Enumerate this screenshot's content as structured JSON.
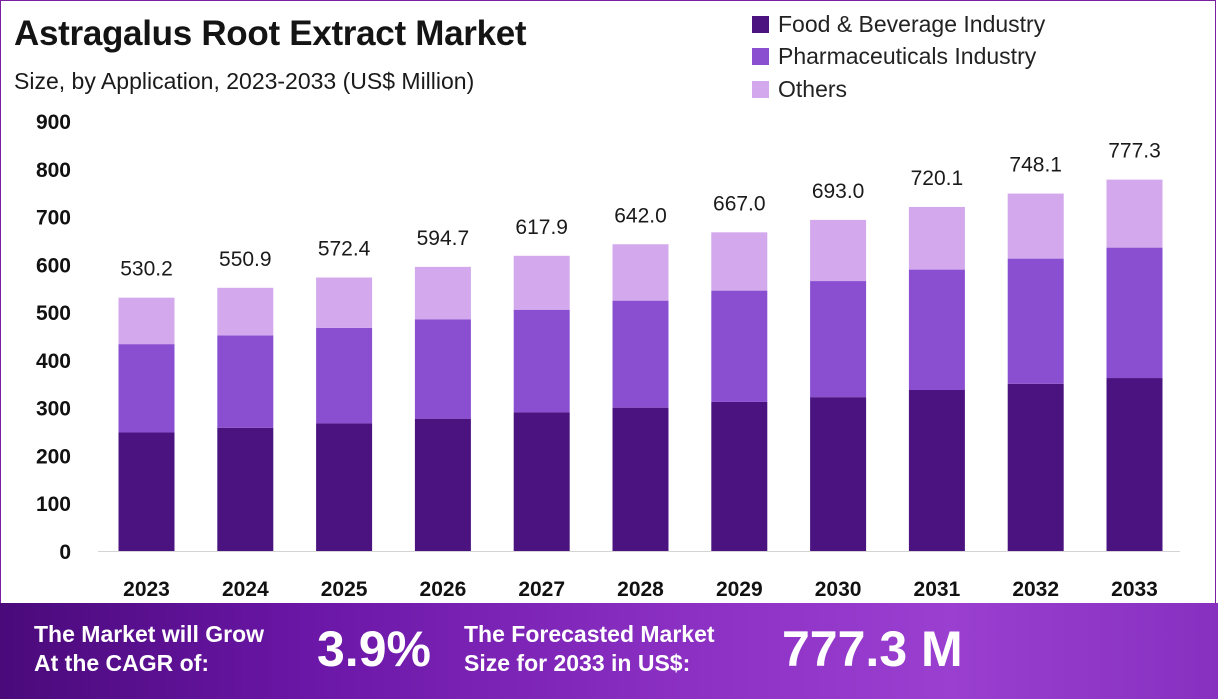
{
  "header": {
    "title": "Astragalus Root Extract Market",
    "subtitle": "Size, by Application, 2023-2033 (US$ Million)"
  },
  "legend": [
    {
      "label": "Food & Beverage Industry",
      "color": "#4b1380"
    },
    {
      "label": "Pharmaceuticals Industry",
      "color": "#8a4fd0"
    },
    {
      "label": "Others",
      "color": "#d3a8ec"
    }
  ],
  "chart_data": {
    "type": "bar",
    "stacked": true,
    "title": "Astragalus Root Extract Market",
    "subtitle": "Size, by Application, 2023-2033 (US$ Million)",
    "categories": [
      "2023",
      "2024",
      "2025",
      "2026",
      "2027",
      "2028",
      "2029",
      "2030",
      "2031",
      "2032",
      "2033"
    ],
    "series": [
      {
        "name": "Food & Beverage Industry",
        "color": "#4b1380",
        "values": [
          248.0,
          258.0,
          267.0,
          277.0,
          290.0,
          300.0,
          312.0,
          322.0,
          337.0,
          350.0,
          362.0
        ]
      },
      {
        "name": "Pharmaceuticals Industry",
        "color": "#8a4fd0",
        "values": [
          185.0,
          193.0,
          200.0,
          208.0,
          215.0,
          224.0,
          233.0,
          243.0,
          252.0,
          262.0,
          273.0
        ]
      },
      {
        "name": "Others",
        "color": "#d3a8ec",
        "values": [
          97.2,
          99.9,
          105.4,
          109.7,
          112.9,
          118.0,
          122.0,
          128.0,
          131.1,
          136.1,
          142.3
        ]
      }
    ],
    "totals": [
      "530.2",
      "550.9",
      "572.4",
      "594.7",
      "617.9",
      "642.0",
      "667.0",
      "693.0",
      "720.1",
      "748.1",
      "777.3"
    ],
    "yticks": [
      "0",
      "100",
      "200",
      "300",
      "400",
      "500",
      "600",
      "700",
      "800",
      "900"
    ],
    "ylim": [
      0,
      900
    ],
    "xlabel": "",
    "ylabel": "",
    "legend_position": "top-right"
  },
  "footer": {
    "cagr_label_line1": "The Market will Grow",
    "cagr_label_line2": "At the CAGR of:",
    "cagr_value": "3.9%",
    "forecast_label_line1": "The Forecasted Market",
    "forecast_label_line2": "Size for 2033 in US$:",
    "forecast_value": "777.3 M"
  }
}
